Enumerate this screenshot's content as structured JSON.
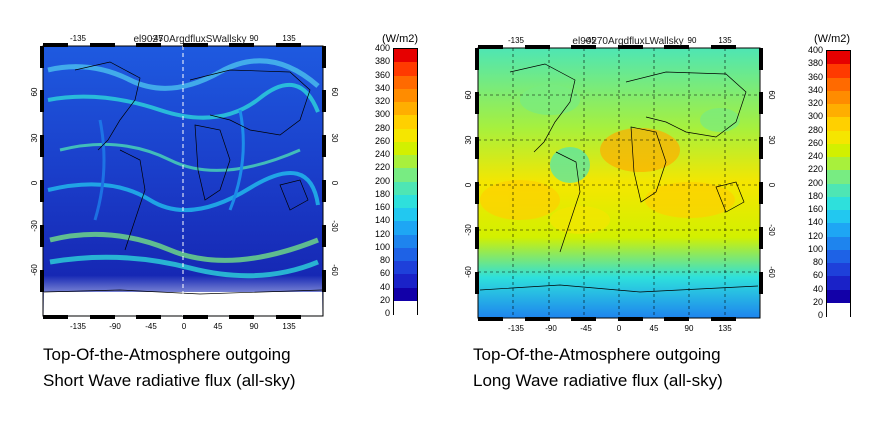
{
  "panels": [
    {
      "map_title": "el90270ArgdfluxSWallsky",
      "lon_ticks": [
        "-135",
        "-90",
        "-45",
        "0",
        "45",
        "90",
        "135"
      ],
      "lat_ticks": [
        "60",
        "30",
        "0",
        "-30",
        "-60"
      ],
      "colorbar_title": "(W/m2)",
      "caption_line1": "Top-Of-the-Atmosphere outgoing",
      "caption_line2": "Short Wave radiative flux (all-sky)",
      "field": "shortwave"
    },
    {
      "map_title": "el90270ArgdfluxLWallsky",
      "lon_ticks": [
        "-135",
        "-90",
        "-45",
        "0",
        "45",
        "90",
        "135"
      ],
      "lat_ticks": [
        "60",
        "30",
        "0",
        "-30",
        "-60"
      ],
      "colorbar_title": "(W/m2)",
      "caption_line1": "Top-Of-the-Atmosphere outgoing",
      "caption_line2": "Long Wave radiative flux (all-sky)",
      "field": "longwave"
    }
  ],
  "colorbar": {
    "labels": [
      "400",
      "380",
      "360",
      "340",
      "320",
      "300",
      "280",
      "260",
      "240",
      "220",
      "200",
      "180",
      "160",
      "140",
      "120",
      "100",
      "80",
      "60",
      "40",
      "20",
      "0"
    ],
    "colors": [
      "#e60000",
      "#ff3a00",
      "#ff6a00",
      "#ff8c00",
      "#ffae00",
      "#ffd000",
      "#f5e600",
      "#d2f000",
      "#a8f03c",
      "#78ec82",
      "#4ee6b4",
      "#2ee0dc",
      "#22c8f0",
      "#1ea6f4",
      "#1e84ee",
      "#1e62e6",
      "#1e40da",
      "#1a22c8",
      "#1200a8",
      "#ffffff"
    ]
  }
}
